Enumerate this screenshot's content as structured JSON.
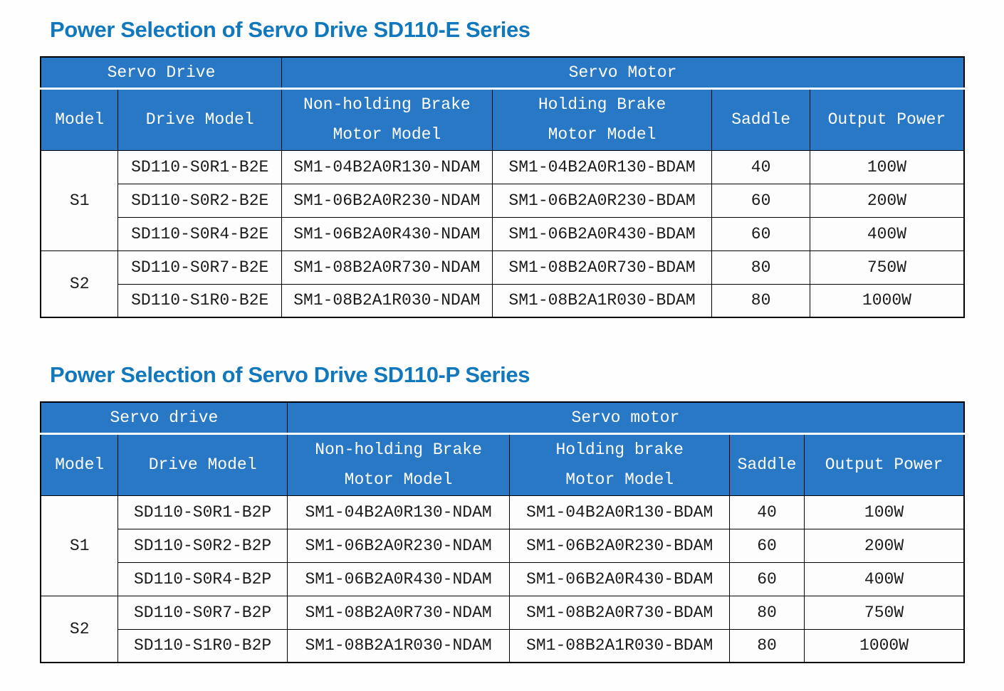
{
  "colors": {
    "title": "#1278be",
    "header_bg": "#2878c6",
    "header_text": "#ffffff",
    "border": "#000000",
    "cell_text": "#1b1b1b",
    "table_bg": "#fdfdfd",
    "page_bg": "#fefefe"
  },
  "tables": [
    {
      "title": "Power Selection of Servo Drive SD110-E Series",
      "group_header": {
        "left": "Servo Drive",
        "right": "Servo Motor"
      },
      "columns": [
        "Model",
        "Drive Model",
        "Non-holding Brake\nMotor Model",
        "Holding Brake\nMotor Model",
        "Saddle",
        "Output Power"
      ],
      "row_groups": [
        {
          "model": "S1",
          "rows": [
            [
              "SD110-S0R1-B2E",
              "SM1-04B2A0R130-NDAM",
              "SM1-04B2A0R130-BDAM",
              "40",
              "100W"
            ],
            [
              "SD110-S0R2-B2E",
              "SM1-06B2A0R230-NDAM",
              "SM1-06B2A0R230-BDAM",
              "60",
              "200W"
            ],
            [
              "SD110-S0R4-B2E",
              "SM1-06B2A0R430-NDAM",
              "SM1-06B2A0R430-BDAM",
              "60",
              "400W"
            ]
          ]
        },
        {
          "model": "S2",
          "rows": [
            [
              "SD110-S0R7-B2E",
              "SM1-08B2A0R730-NDAM",
              "SM1-08B2A0R730-BDAM",
              "80",
              "750W"
            ],
            [
              "SD110-S1R0-B2E",
              "SM1-08B2A1R030-NDAM",
              "SM1-08B2A1R030-BDAM",
              "80",
              "1000W"
            ]
          ]
        }
      ]
    },
    {
      "title": "Power Selection of Servo Drive SD110-P Series",
      "group_header": {
        "left": "Servo drive",
        "right": "Servo motor"
      },
      "columns": [
        "Model",
        "Drive Model",
        "Non-holding Brake\nMotor Model",
        "Holding brake\nMotor Model",
        "Saddle",
        "Output Power"
      ],
      "row_groups": [
        {
          "model": "S1",
          "rows": [
            [
              "SD110-S0R1-B2P",
              "SM1-04B2A0R130-NDAM",
              "SM1-04B2A0R130-BDAM",
              "40",
              "100W"
            ],
            [
              "SD110-S0R2-B2P",
              "SM1-06B2A0R230-NDAM",
              "SM1-06B2A0R230-BDAM",
              "60",
              "200W"
            ],
            [
              "SD110-S0R4-B2P",
              "SM1-06B2A0R430-NDAM",
              "SM1-06B2A0R430-BDAM",
              "60",
              "400W"
            ]
          ]
        },
        {
          "model": "S2",
          "rows": [
            [
              "SD110-S0R7-B2P",
              "SM1-08B2A0R730-NDAM",
              "SM1-08B2A0R730-BDAM",
              "80",
              "750W"
            ],
            [
              "SD110-S1R0-B2P",
              "SM1-08B2A1R030-NDAM",
              "SM1-08B2A1R030-BDAM",
              "80",
              "1000W"
            ]
          ]
        }
      ]
    }
  ]
}
